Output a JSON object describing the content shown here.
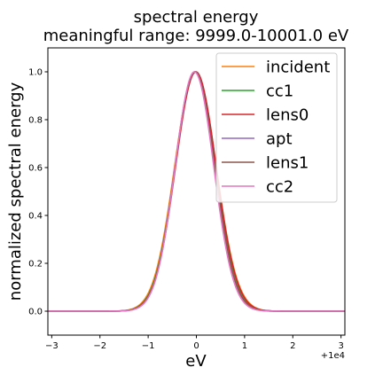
{
  "chart_data": {
    "type": "line",
    "title": "spectral energy",
    "subtitle": "meaningful range: 9999.0-10001.0 eV",
    "xlabel": "eV",
    "ylabel": "normalized spectral energy",
    "x_offset_label": "+1e4",
    "xlim": [
      -3.08,
      3.08
    ],
    "ylim": [
      -0.1,
      1.1
    ],
    "xticks": [
      -3,
      -2,
      -1,
      0,
      1,
      2,
      3
    ],
    "xtick_labels": [
      "−3",
      "−2",
      "−1",
      "0",
      "1",
      "2",
      "3"
    ],
    "yticks": [
      0.0,
      0.2,
      0.4,
      0.6,
      0.8,
      1.0
    ],
    "ytick_labels": [
      "0.0",
      "0.2",
      "0.4",
      "0.6",
      "0.8",
      "1.0"
    ],
    "grid": false,
    "legend_position": "top-right",
    "series": [
      {
        "name": "incident",
        "color": "#ff7f0e",
        "center": -0.02,
        "sigma": 0.43
      },
      {
        "name": "cc1",
        "color": "#2ca02c",
        "center": -0.02,
        "sigma": 0.42
      },
      {
        "name": "lens0",
        "color": "#d62728",
        "center": -0.01,
        "sigma": 0.42
      },
      {
        "name": "apt",
        "color": "#9467bd",
        "center": -0.03,
        "sigma": 0.41
      },
      {
        "name": "lens1",
        "color": "#8c564b",
        "center": -0.03,
        "sigma": 0.41
      },
      {
        "name": "cc2",
        "color": "#e377c2",
        "center": -0.04,
        "sigma": 0.4
      }
    ]
  }
}
